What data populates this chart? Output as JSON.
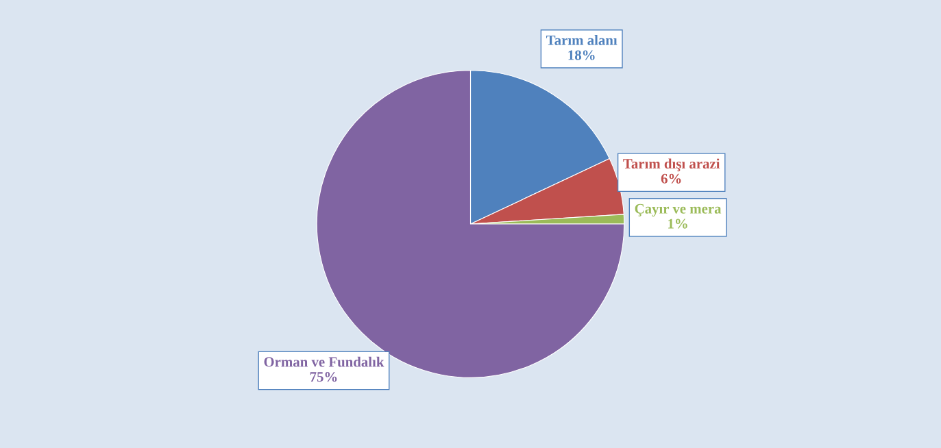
{
  "chart_data": {
    "type": "pie",
    "categories": [
      "Tarım alanı",
      "Tarım dışı arazi",
      "Çayır ve mera",
      "Orman ve Fundalık"
    ],
    "values": [
      18,
      6,
      1,
      75
    ],
    "colors": [
      "#4f81bd",
      "#c0504d",
      "#9bbb59",
      "#8064a2"
    ],
    "value_labels": [
      "18%",
      "6%",
      "1%",
      "75%"
    ],
    "legend": false
  }
}
